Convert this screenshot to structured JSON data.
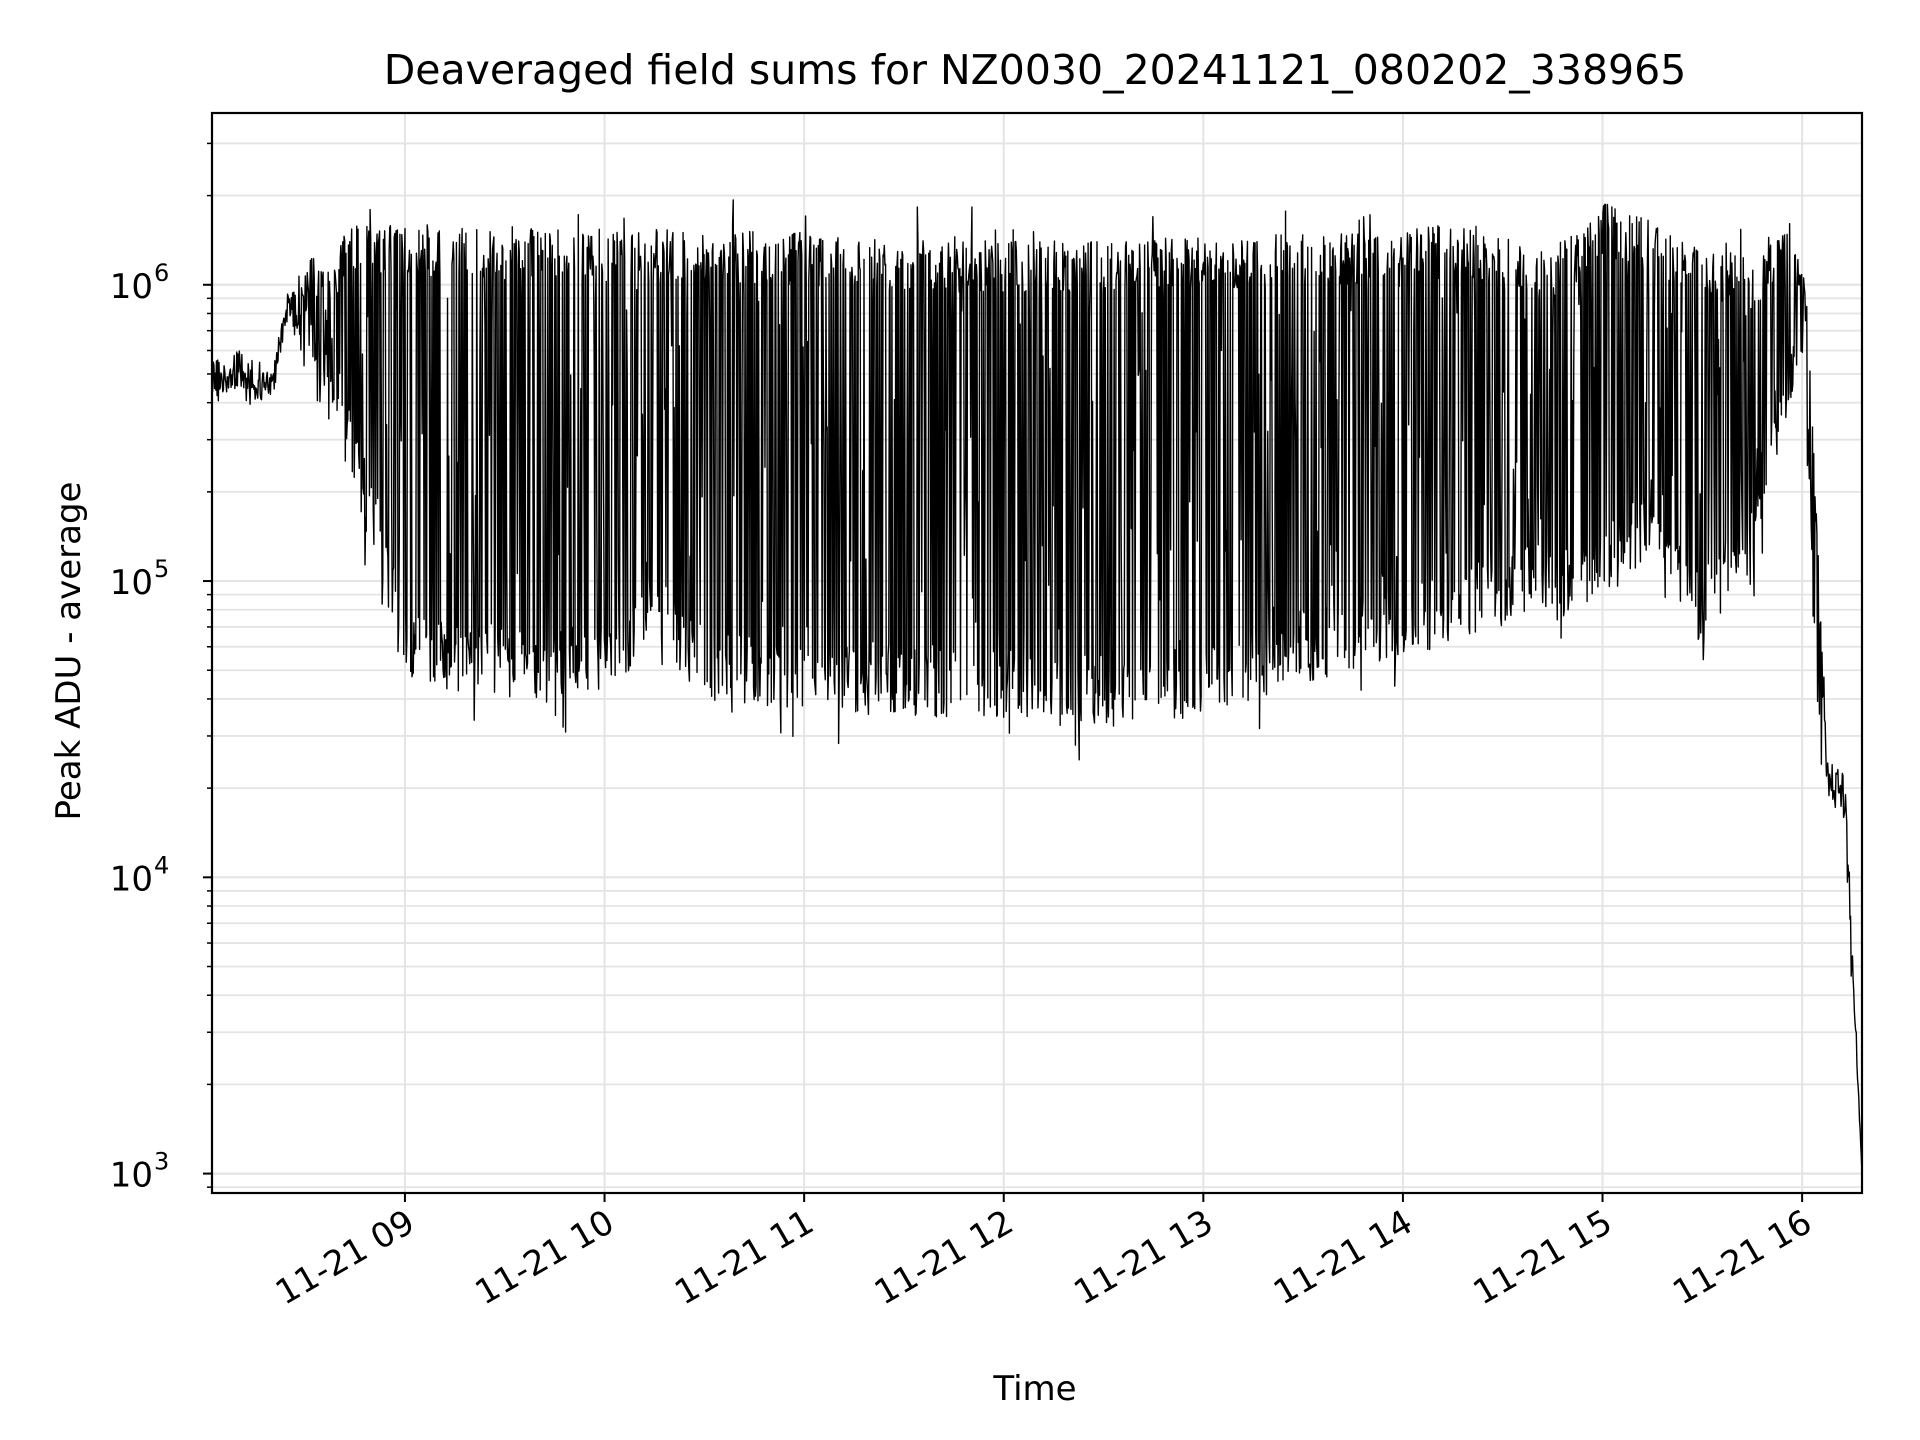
{
  "chart_data": {
    "type": "line",
    "title": "Deaveraged field sums for NZ0030_20241121_080202_338965",
    "xlabel": "Time",
    "ylabel": "Peak ADU - average",
    "y_scale": "log",
    "ylim": [
      860,
      3800000
    ],
    "xlim": [
      "2024-11-21 08:02",
      "2024-11-21 16:18"
    ],
    "x_ticks": [
      "11-21 09",
      "11-21 10",
      "11-21 11",
      "11-21 12",
      "11-21 13",
      "11-21 14",
      "11-21 15",
      "11-21 16"
    ],
    "y_ticks": [
      {
        "base": "10",
        "exp": "3",
        "value": 1000
      },
      {
        "base": "10",
        "exp": "4",
        "value": 10000
      },
      {
        "base": "10",
        "exp": "5",
        "value": 100000
      },
      {
        "base": "10",
        "exp": "6",
        "value": 1000000
      }
    ],
    "grid": true,
    "line_color": "#000000",
    "series": [
      {
        "upper_envelope": {
          "x": [
            "2024-11-21 08:02",
            "2024-11-21 08:10",
            "2024-11-21 08:20",
            "2024-11-21 08:25",
            "2024-11-21 08:30",
            "2024-11-21 08:40",
            "2024-11-21 08:45",
            "2024-11-21 09:00",
            "2024-11-21 10:00",
            "2024-11-21 11:00",
            "2024-11-21 12:00",
            "2024-11-21 13:00",
            "2024-11-21 14:00",
            "2024-11-21 14:15",
            "2024-11-21 14:45",
            "2024-11-21 15:00",
            "2024-11-21 15:30",
            "2024-11-21 15:45",
            "2024-11-21 15:55",
            "2024-11-21 16:00",
            "2024-11-21 16:02",
            "2024-11-21 16:05",
            "2024-11-21 16:08",
            "2024-11-21 16:13",
            "2024-11-21 16:18"
          ],
          "y": [
            550000,
            600000,
            500000,
            1000000,
            1200000,
            1400000,
            1600000,
            1600000,
            1550000,
            1500000,
            1400000,
            1450000,
            1550000,
            1600000,
            1300000,
            1900000,
            1400000,
            1200000,
            1800000,
            1200000,
            800000,
            120000,
            25000,
            22000,
            1000
          ]
        },
        "lower_envelope": {
          "x": [
            "2024-11-21 08:02",
            "2024-11-21 08:10",
            "2024-11-21 08:20",
            "2024-11-21 08:25",
            "2024-11-21 08:30",
            "2024-11-21 08:40",
            "2024-11-21 08:50",
            "2024-11-21 09:00",
            "2024-11-21 09:30",
            "2024-11-21 10:00",
            "2024-11-21 10:15",
            "2024-11-21 10:30",
            "2024-11-21 11:00",
            "2024-11-21 11:30",
            "2024-11-21 12:00",
            "2024-11-21 12:30",
            "2024-11-21 13:00",
            "2024-11-21 13:30",
            "2024-11-21 14:00",
            "2024-11-21 14:30",
            "2024-11-21 15:00",
            "2024-11-21 15:15",
            "2024-11-21 15:30",
            "2024-11-21 15:45",
            "2024-11-21 15:55",
            "2024-11-21 16:00",
            "2024-11-21 16:02",
            "2024-11-21 16:05",
            "2024-11-21 16:08",
            "2024-11-21 16:13",
            "2024-11-21 16:18"
          ],
          "y": [
            400000,
            420000,
            400000,
            800000,
            500000,
            300000,
            120000,
            45000,
            40000,
            40000,
            60000,
            40000,
            36000,
            35000,
            33000,
            32000,
            35000,
            45000,
            55000,
            70000,
            85000,
            120000,
            60000,
            110000,
            350000,
            500000,
            200000,
            30000,
            18000,
            15000,
            1000
          ]
        }
      }
    ]
  }
}
